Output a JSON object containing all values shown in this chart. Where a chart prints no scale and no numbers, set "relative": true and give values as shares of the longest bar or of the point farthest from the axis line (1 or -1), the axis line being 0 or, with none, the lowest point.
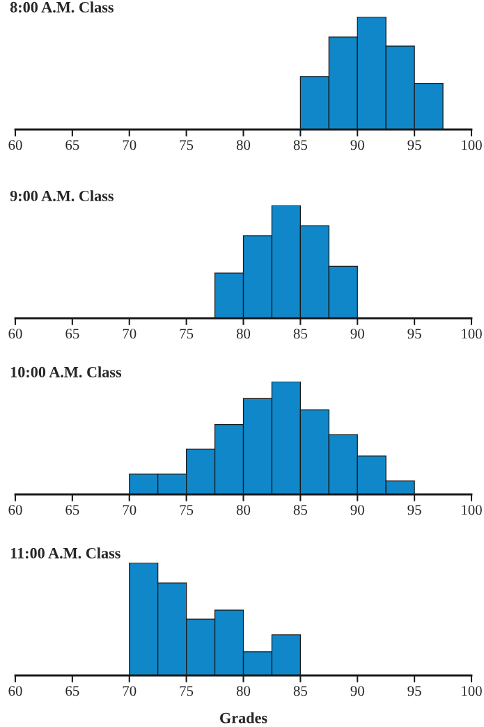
{
  "chart_data": [
    {
      "type": "bar",
      "title": "8:00 A.M. Class",
      "relative": true,
      "color": "#0f87c9",
      "x": [
        86.25,
        88.75,
        91.25,
        93.75,
        96.25
      ],
      "values": [
        0.47,
        0.82,
        1,
        0.74,
        0.41
      ],
      "xlim": [
        60,
        100
      ],
      "xticks": [
        60,
        65,
        70,
        75,
        80,
        85,
        90,
        95,
        100
      ]
    },
    {
      "type": "bar",
      "title": "9:00 A.M. Class",
      "relative": true,
      "color": "#0f87c9",
      "x": [
        78.75,
        81.25,
        83.75,
        86.25,
        88.75
      ],
      "values": [
        0.4,
        0.73,
        1,
        0.82,
        0.46
      ],
      "xlim": [
        60,
        100
      ],
      "xticks": [
        60,
        65,
        70,
        75,
        80,
        85,
        90,
        95,
        100
      ]
    },
    {
      "type": "bar",
      "title": "10:00 A.M. Class",
      "relative": true,
      "color": "#0f87c9",
      "x": [
        71.25,
        73.75,
        76.25,
        78.75,
        81.25,
        83.75,
        86.25,
        88.75,
        91.25,
        93.75
      ],
      "values": [
        0.18,
        0.18,
        0.4,
        0.62,
        0.85,
        1,
        0.75,
        0.53,
        0.34,
        0.12
      ],
      "xlim": [
        60,
        100
      ],
      "xticks": [
        60,
        65,
        70,
        75,
        80,
        85,
        90,
        95,
        100
      ]
    },
    {
      "type": "bar",
      "title": "11:00 A.M. Class",
      "xlabel": "Grades",
      "relative": true,
      "color": "#0f87c9",
      "x": [
        71.25,
        73.75,
        76.25,
        78.75,
        81.25,
        83.75
      ],
      "values": [
        1,
        0.82,
        0.5,
        0.58,
        0.21,
        0.36
      ],
      "xlim": [
        60,
        100
      ],
      "xticks": [
        60,
        65,
        70,
        75,
        80,
        85,
        90,
        95,
        100
      ]
    }
  ]
}
